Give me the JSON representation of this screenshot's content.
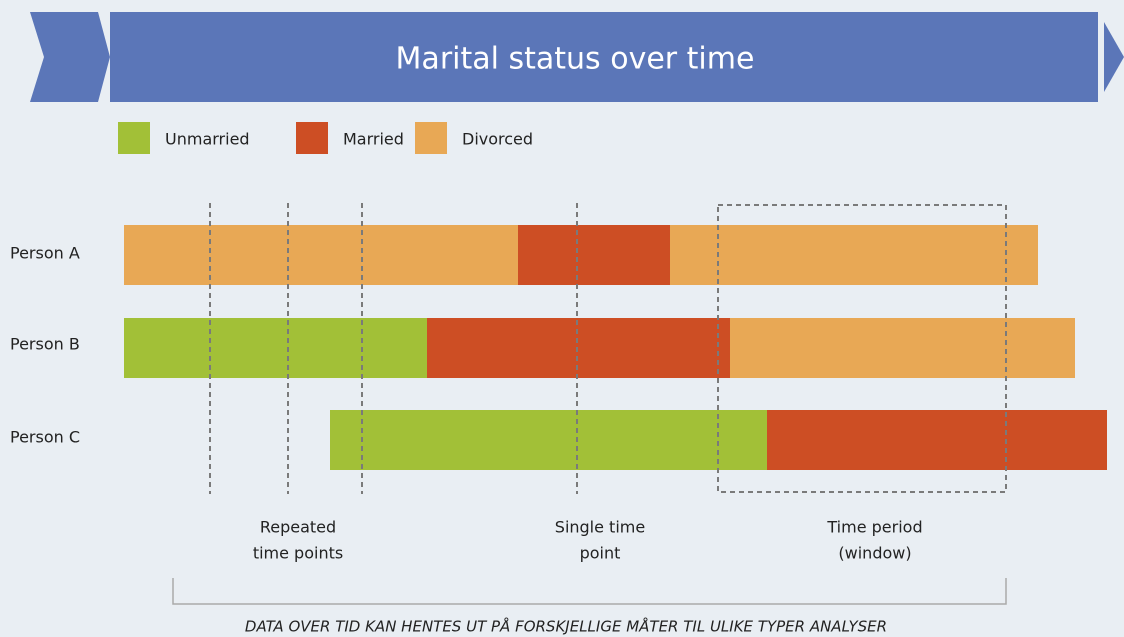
{
  "header": {
    "title": "Marital status over time"
  },
  "legend": [
    {
      "label": "Unmarried",
      "color": "#a2c037"
    },
    {
      "label": "Married",
      "color": "#cd4e24"
    },
    {
      "label": "Divorced",
      "color": "#e8a855"
    }
  ],
  "persons": [
    "Person A",
    "Person B",
    "Person C"
  ],
  "annotations": [
    [
      "Repeated",
      "time points"
    ],
    [
      "Single time",
      "point"
    ],
    [
      "Time period",
      "(window)"
    ]
  ],
  "footer": "DATA OVER TID KAN HENTES UT PÅ FORSKJELLIGE MÅTER TIL ULIKE TYPER ANALYSER"
}
